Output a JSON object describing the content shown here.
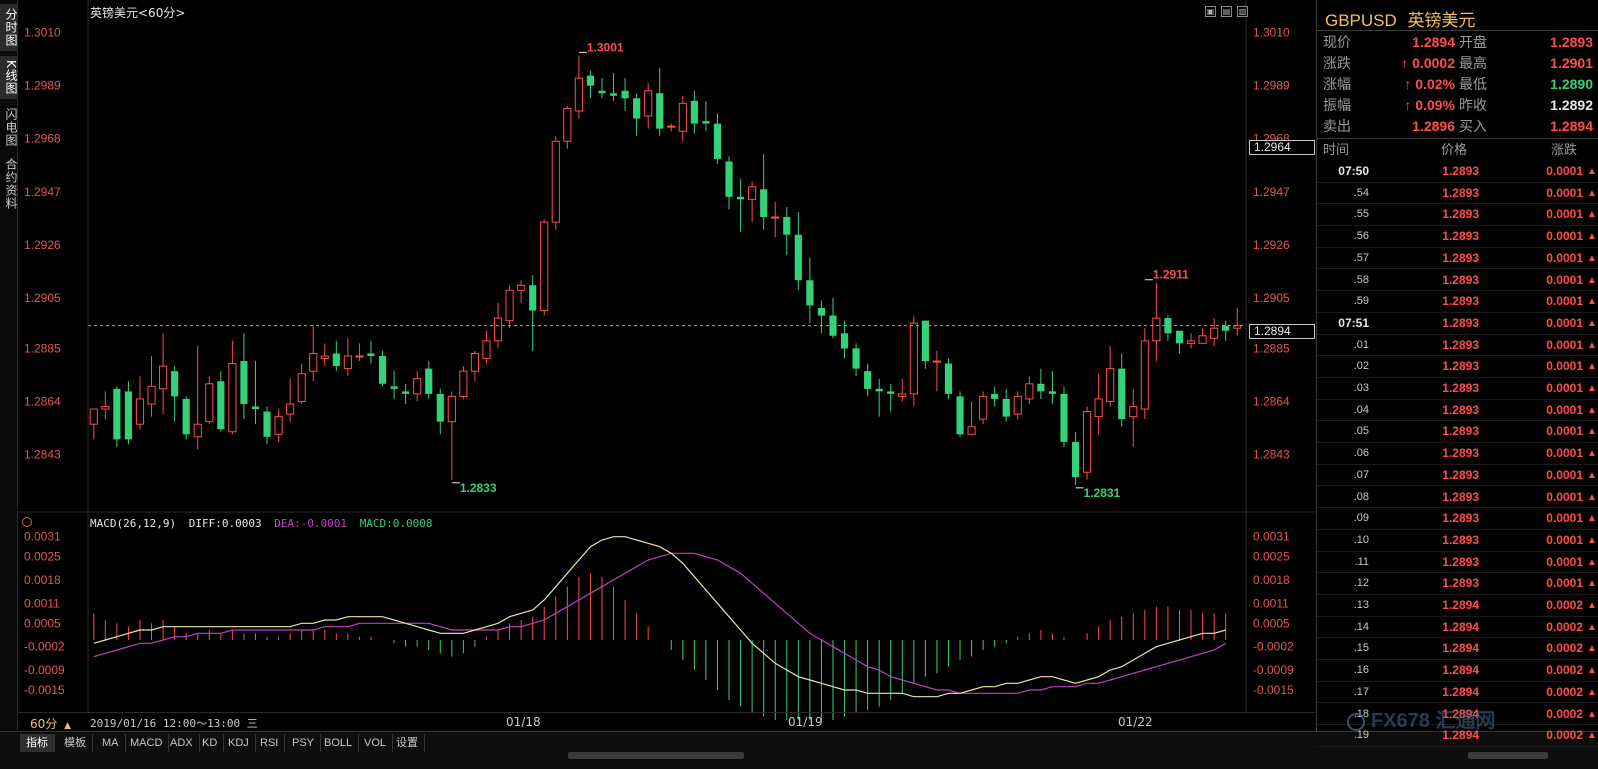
{
  "left_tabs": [
    {
      "label": "分时图",
      "active": true
    },
    {
      "label": "K线图",
      "active": true
    },
    {
      "label": "闪电图",
      "active": false
    },
    {
      "label": "合约资料",
      "active": false
    }
  ],
  "window_buttons": [
    "▣",
    "▤",
    "▥"
  ],
  "chart_title": "英镑美元<60分>",
  "macd_header": {
    "name": "MACD(26,12,9)",
    "diff": "DIFF:0.0003",
    "dea": "DEA:-0.0001",
    "macd": "MACD:0.0008"
  },
  "price_axis_labels": [
    "1.3010",
    "1.2989",
    "1.2968",
    "1.2947",
    "1.2926",
    "1.2905",
    "1.2885",
    "1.2864",
    "1.2843"
  ],
  "macd_axis_labels": [
    "0.0031",
    "0.0025",
    "0.0018",
    "0.0011",
    "0.0005",
    "-0.0002",
    "-0.0009",
    "-0.0015"
  ],
  "price_markers": {
    "current": "1.2894",
    "crosshair": "1.2964"
  },
  "extreme_labels": {
    "high1": "1.3001",
    "low1": "1.2833",
    "low2": "1.2831",
    "high2": "1.2911"
  },
  "date_bar": {
    "period": "60分",
    "cursor_time": "2019/01/16 12:00～13:00 三",
    "dates": [
      "01/18",
      "01/19",
      "01/22"
    ]
  },
  "bottom_tabs": [
    "指标",
    "模板",
    "MA",
    "MACD",
    "ADX",
    "KD",
    "KDJ",
    "RSI",
    "PSY",
    "BOLL",
    "VOL",
    "设置"
  ],
  "quote": {
    "symbol": "GBPUSD",
    "name": "英镑美元",
    "rows": [
      {
        "l1": "现价",
        "v1": "1.2894",
        "c1": "red",
        "l2": "开盘",
        "v2": "1.2893",
        "c2": "red"
      },
      {
        "l1": "涨跌",
        "v1": "↑ 0.0002",
        "c1": "red",
        "l2": "最高",
        "v2": "1.2901",
        "c2": "red"
      },
      {
        "l1": "涨幅",
        "v1": "↑ 0.02%",
        "c1": "red",
        "l2": "最低",
        "v2": "1.2890",
        "c2": "green"
      },
      {
        "l1": "振幅",
        "v1": "↑ 0.09%",
        "c1": "red",
        "l2": "昨收",
        "v2": "1.2892",
        "c2": "white"
      },
      {
        "l1": "卖出",
        "v1": "1.2896",
        "c1": "red",
        "l2": "买入",
        "v2": "1.2894",
        "c2": "red"
      }
    ]
  },
  "ticks_header": {
    "time": "时间",
    "price": "价格",
    "change": "涨跌"
  },
  "ticks": [
    {
      "time": "07:50",
      "price": "1.2893",
      "change": "0.0001"
    },
    {
      "time": ".54",
      "price": "1.2893",
      "change": "0.0001"
    },
    {
      "time": ".55",
      "price": "1.2893",
      "change": "0.0001"
    },
    {
      "time": ".56",
      "price": "1.2893",
      "change": "0.0001"
    },
    {
      "time": ".57",
      "price": "1.2893",
      "change": "0.0001"
    },
    {
      "time": ".58",
      "price": "1.2893",
      "change": "0.0001"
    },
    {
      "time": ".59",
      "price": "1.2893",
      "change": "0.0001"
    },
    {
      "time": "07:51",
      "price": "1.2893",
      "change": "0.0001"
    },
    {
      "time": ".01",
      "price": "1.2893",
      "change": "0.0001"
    },
    {
      "time": ".02",
      "price": "1.2893",
      "change": "0.0001"
    },
    {
      "time": ".03",
      "price": "1.2893",
      "change": "0.0001"
    },
    {
      "time": ".04",
      "price": "1.2893",
      "change": "0.0001"
    },
    {
      "time": ".05",
      "price": "1.2893",
      "change": "0.0001"
    },
    {
      "time": ".06",
      "price": "1.2893",
      "change": "0.0001"
    },
    {
      "time": ".07",
      "price": "1.2893",
      "change": "0.0001"
    },
    {
      "time": ".08",
      "price": "1.2893",
      "change": "0.0001"
    },
    {
      "time": ".09",
      "price": "1.2893",
      "change": "0.0001"
    },
    {
      "time": ".10",
      "price": "1.2893",
      "change": "0.0001"
    },
    {
      "time": ".11",
      "price": "1.2893",
      "change": "0.0001"
    },
    {
      "time": ".12",
      "price": "1.2893",
      "change": "0.0001"
    },
    {
      "time": ".13",
      "price": "1.2894",
      "change": "0.0002"
    },
    {
      "time": ".14",
      "price": "1.2894",
      "change": "0.0002"
    },
    {
      "time": ".15",
      "price": "1.2894",
      "change": "0.0002"
    },
    {
      "time": ".16",
      "price": "1.2894",
      "change": "0.0002"
    },
    {
      "time": ".17",
      "price": "1.2894",
      "change": "0.0002"
    },
    {
      "time": ".18",
      "price": "1.2894",
      "change": "0.0002"
    },
    {
      "time": ".19",
      "price": "1.2894",
      "change": "0.0002"
    }
  ],
  "watermark": "FX678 汇通网",
  "colors": {
    "up": "#ff4d4d",
    "down": "#33d17a",
    "dea": "#c040c0",
    "diff": "#e6e6a0",
    "bg": "#000000"
  },
  "chart_data": {
    "type": "candlestick",
    "interval": "60分",
    "ylim": [
      1.2825,
      1.3015
    ],
    "macd_ylim": [
      -0.0018,
      0.0033
    ],
    "dates": [
      "01/18",
      "01/19",
      "01/22"
    ],
    "candles": [
      [
        1.2855,
        1.2861,
        1.2849,
        1.2861
      ],
      [
        1.2861,
        1.2862,
        1.2868,
        1.2857
      ],
      [
        1.2869,
        1.2849,
        1.287,
        1.2846
      ],
      [
        1.2868,
        1.2849,
        1.2872,
        1.2847
      ],
      [
        1.2855,
        1.2865,
        1.2874,
        1.2853
      ],
      [
        1.2863,
        1.287,
        1.2882,
        1.2858
      ],
      [
        1.2869,
        1.2878,
        1.2891,
        1.2859
      ],
      [
        1.2876,
        1.2866,
        1.2878,
        1.2856
      ],
      [
        1.2865,
        1.2851,
        1.2866,
        1.2849
      ],
      [
        1.285,
        1.2855,
        1.2886,
        1.2845
      ],
      [
        1.2856,
        1.2871,
        1.2874,
        1.2855
      ],
      [
        1.2872,
        1.2853,
        1.2876,
        1.2852
      ],
      [
        1.2852,
        1.2879,
        1.2888,
        1.2851
      ],
      [
        1.288,
        1.2863,
        1.2891,
        1.2857
      ],
      [
        1.2862,
        1.2861,
        1.288,
        1.2855
      ],
      [
        1.286,
        1.285,
        1.2862,
        1.2847
      ],
      [
        1.2851,
        1.2858,
        1.2861,
        1.2848
      ],
      [
        1.2859,
        1.2863,
        1.2873,
        1.2856
      ],
      [
        1.2864,
        1.2875,
        1.2879,
        1.2863
      ],
      [
        1.2876,
        1.2883,
        1.2894,
        1.2872
      ],
      [
        1.2881,
        1.2882,
        1.2887,
        1.2878
      ],
      [
        1.2883,
        1.2878,
        1.2888,
        1.2876
      ],
      [
        1.2877,
        1.2882,
        1.2889,
        1.2874
      ],
      [
        1.2882,
        1.2882,
        1.2887,
        1.288
      ],
      [
        1.2883,
        1.2882,
        1.2888,
        1.2879
      ],
      [
        1.2882,
        1.2871,
        1.2884,
        1.287
      ],
      [
        1.287,
        1.2869,
        1.2876,
        1.2865
      ],
      [
        1.2868,
        1.2867,
        1.2871,
        1.2863
      ],
      [
        1.2867,
        1.2873,
        1.2876,
        1.2864
      ],
      [
        1.2877,
        1.2867,
        1.288,
        1.2865
      ],
      [
        1.2867,
        1.2856,
        1.2869,
        1.2851
      ],
      [
        1.2856,
        1.2866,
        1.2868,
        1.2833
      ],
      [
        1.2866,
        1.2876,
        1.2878,
        1.2865
      ],
      [
        1.2876,
        1.2883,
        1.2884,
        1.2872
      ],
      [
        1.2881,
        1.2888,
        1.2892,
        1.2879
      ],
      [
        1.2888,
        1.2897,
        1.2903,
        1.2885
      ],
      [
        1.2896,
        1.2908,
        1.291,
        1.2893
      ],
      [
        1.2908,
        1.291,
        1.2912,
        1.2903
      ],
      [
        1.291,
        1.29,
        1.2914,
        1.2884
      ],
      [
        1.29,
        1.2935,
        1.2936,
        1.2898
      ],
      [
        1.2935,
        1.2967,
        1.2969,
        1.2932
      ],
      [
        1.2967,
        1.298,
        1.2981,
        1.2964
      ],
      [
        1.2979,
        1.2992,
        1.3001,
        1.2976
      ],
      [
        1.2993,
        1.2989,
        1.2995,
        1.2984
      ],
      [
        1.2987,
        1.2986,
        1.2992,
        1.2984
      ],
      [
        1.2986,
        1.2985,
        1.2994,
        1.2983
      ],
      [
        1.2987,
        1.2984,
        1.2992,
        1.2979
      ],
      [
        1.2984,
        1.2976,
        1.2986,
        1.2969
      ],
      [
        1.2977,
        1.2987,
        1.299,
        1.2972
      ],
      [
        1.2986,
        1.2972,
        1.2996,
        1.2969
      ],
      [
        1.2973,
        1.2973,
        1.2974,
        1.2971
      ],
      [
        1.2971,
        1.2982,
        1.2985,
        1.2967
      ],
      [
        1.2983,
        1.2974,
        1.2987,
        1.297
      ],
      [
        1.2975,
        1.2974,
        1.2983,
        1.2971
      ],
      [
        1.2974,
        1.296,
        1.2978,
        1.2958
      ],
      [
        1.2959,
        1.2945,
        1.2961,
        1.294
      ],
      [
        1.2945,
        1.2944,
        1.2952,
        1.2931
      ],
      [
        1.2944,
        1.2949,
        1.2951,
        1.2935
      ],
      [
        1.2948,
        1.2937,
        1.2962,
        1.2932
      ],
      [
        1.2937,
        1.2937,
        1.2943,
        1.2929
      ],
      [
        1.2937,
        1.293,
        1.2941,
        1.2922
      ],
      [
        1.293,
        1.2912,
        1.2939,
        1.2908
      ],
      [
        1.2912,
        1.2902,
        1.2921,
        1.2895
      ],
      [
        1.2901,
        1.2898,
        1.2904,
        1.2891
      ],
      [
        1.2898,
        1.289,
        1.2905,
        1.2889
      ],
      [
        1.2891,
        1.2885,
        1.2896,
        1.2881
      ],
      [
        1.2885,
        1.2877,
        1.2887,
        1.2874
      ],
      [
        1.2876,
        1.2869,
        1.2879,
        1.2866
      ],
      [
        1.2869,
        1.2868,
        1.2873,
        1.2858
      ],
      [
        1.2868,
        1.2867,
        1.2871,
        1.286
      ],
      [
        1.2866,
        1.2867,
        1.2873,
        1.2864
      ],
      [
        1.2867,
        1.2895,
        1.2898,
        1.2862
      ],
      [
        1.2896,
        1.288,
        1.2896,
        1.2877
      ],
      [
        1.288,
        1.288,
        1.2884,
        1.2868
      ],
      [
        1.2879,
        1.2867,
        1.2881,
        1.2865
      ],
      [
        1.2866,
        1.2851,
        1.2868,
        1.285
      ],
      [
        1.2851,
        1.2854,
        1.2864,
        1.2851
      ],
      [
        1.2857,
        1.2866,
        1.2868,
        1.2855
      ],
      [
        1.2867,
        1.2865,
        1.287,
        1.2862
      ],
      [
        1.2865,
        1.2858,
        1.2869,
        1.2856
      ],
      [
        1.2859,
        1.2866,
        1.2868,
        1.2857
      ],
      [
        1.2865,
        1.2871,
        1.2874,
        1.2863
      ],
      [
        1.2871,
        1.2868,
        1.2877,
        1.2865
      ],
      [
        1.2868,
        1.2867,
        1.2876,
        1.2863
      ],
      [
        1.2867,
        1.2848,
        1.287,
        1.2846
      ],
      [
        1.2848,
        1.2834,
        1.2852,
        1.2831
      ],
      [
        1.2836,
        1.286,
        1.2862,
        1.2833
      ],
      [
        1.2858,
        1.2865,
        1.2875,
        1.2851
      ],
      [
        1.2864,
        1.2877,
        1.2886,
        1.2862
      ],
      [
        1.2877,
        1.2857,
        1.2883,
        1.2854
      ],
      [
        1.2858,
        1.2862,
        1.2869,
        1.2846
      ],
      [
        1.2861,
        1.2888,
        1.2893,
        1.2857
      ],
      [
        1.2888,
        1.2897,
        1.2911,
        1.288
      ],
      [
        1.2897,
        1.2891,
        1.2898,
        1.2888
      ],
      [
        1.2892,
        1.2887,
        1.2891,
        1.2883
      ],
      [
        1.2887,
        1.2888,
        1.2891,
        1.2885
      ],
      [
        1.2887,
        1.289,
        1.2893,
        1.2887
      ],
      [
        1.2889,
        1.2893,
        1.2897,
        1.2886
      ],
      [
        1.2894,
        1.2892,
        1.2896,
        1.2888
      ],
      [
        1.2893,
        1.2894,
        1.2901,
        1.289
      ]
    ],
    "macd_hist": [
      0.0008,
      0.0006,
      0.0005,
      0.0004,
      0.0006,
      0.0005,
      0.0006,
      0.0004,
      0.0002,
      0.0002,
      0.0003,
      0.0002,
      0.0003,
      0.0002,
      0.0002,
      0.0001,
      0.0001,
      0.0002,
      0.0003,
      0.0003,
      0.0003,
      0.0002,
      0.0002,
      0.0001,
      0.0001,
      0.0,
      -0.0001,
      -0.0002,
      -0.0002,
      -0.0003,
      -0.0004,
      -0.0005,
      -0.0004,
      -0.0002,
      0.0001,
      0.0003,
      0.0005,
      0.0006,
      0.0007,
      0.001,
      0.0013,
      0.0016,
      0.0019,
      0.002,
      0.0019,
      0.0016,
      0.0012,
      0.0008,
      0.0004,
      0.0,
      -0.0003,
      -0.0006,
      -0.0009,
      -0.0012,
      -0.0015,
      -0.0018,
      -0.002,
      -0.0022,
      -0.0023,
      -0.0024,
      -0.0024,
      -0.0024,
      -0.0024,
      -0.0024,
      -0.0024,
      -0.0023,
      -0.0022,
      -0.0021,
      -0.002,
      -0.0018,
      -0.0016,
      -0.0013,
      -0.0011,
      -0.001,
      -0.0008,
      -0.0006,
      -0.0005,
      -0.0003,
      -0.0002,
      -0.0001,
      0.0001,
      0.0002,
      0.0003,
      0.0002,
      0.0001,
      0.0,
      0.0002,
      0.0004,
      0.0006,
      0.0007,
      0.0008,
      0.0009,
      0.001,
      0.001,
      0.0009,
      0.0009,
      0.0008,
      0.0008,
      0.0008
    ],
    "diff": [
      -0.0001,
      0.0,
      0.0001,
      0.0002,
      0.0003,
      0.0003,
      0.0004,
      0.0004,
      0.0004,
      0.0004,
      0.0004,
      0.0004,
      0.0004,
      0.0004,
      0.0004,
      0.0004,
      0.0004,
      0.0004,
      0.0005,
      0.0005,
      0.0006,
      0.0006,
      0.0007,
      0.0007,
      0.0007,
      0.0007,
      0.0006,
      0.0005,
      0.0004,
      0.0003,
      0.0002,
      0.0002,
      0.0002,
      0.0003,
      0.0004,
      0.0005,
      0.0007,
      0.0008,
      0.0009,
      0.0012,
      0.0016,
      0.002,
      0.0024,
      0.0028,
      0.003,
      0.0031,
      0.0031,
      0.003,
      0.0029,
      0.0028,
      0.0026,
      0.0023,
      0.0019,
      0.0015,
      0.0011,
      0.0007,
      0.0003,
      -0.0001,
      -0.0004,
      -0.0007,
      -0.0009,
      -0.0011,
      -0.0012,
      -0.0013,
      -0.0014,
      -0.0015,
      -0.0015,
      -0.0016,
      -0.0016,
      -0.0016,
      -0.0016,
      -0.0017,
      -0.0017,
      -0.0017,
      -0.0016,
      -0.0016,
      -0.0015,
      -0.0014,
      -0.0014,
      -0.0013,
      -0.0013,
      -0.0012,
      -0.0011,
      -0.0011,
      -0.0012,
      -0.0013,
      -0.0012,
      -0.0011,
      -0.0009,
      -0.0008,
      -0.0006,
      -0.0004,
      -0.0002,
      -0.0001,
      0.0,
      0.0001,
      0.0002,
      0.0002,
      0.0003
    ],
    "dea": [
      -0.0005,
      -0.0004,
      -0.0003,
      -0.0002,
      -0.0001,
      -0.0001,
      0.0,
      0.0001,
      0.0001,
      0.0002,
      0.0002,
      0.0002,
      0.0003,
      0.0003,
      0.0003,
      0.0003,
      0.0003,
      0.0003,
      0.0003,
      0.0003,
      0.0004,
      0.0004,
      0.0004,
      0.0005,
      0.0005,
      0.0005,
      0.0005,
      0.0005,
      0.0005,
      0.0005,
      0.0004,
      0.0003,
      0.0003,
      0.0003,
      0.0003,
      0.0003,
      0.0004,
      0.0004,
      0.0005,
      0.0006,
      0.0008,
      0.001,
      0.0012,
      0.0014,
      0.0016,
      0.0018,
      0.002,
      0.0022,
      0.0024,
      0.0025,
      0.0026,
      0.0026,
      0.0026,
      0.0025,
      0.0024,
      0.0022,
      0.002,
      0.0017,
      0.0014,
      0.0011,
      0.0008,
      0.0005,
      0.0002,
      0.0,
      -0.0002,
      -0.0004,
      -0.0006,
      -0.0008,
      -0.0009,
      -0.0011,
      -0.0012,
      -0.0013,
      -0.0014,
      -0.0015,
      -0.0015,
      -0.0016,
      -0.0016,
      -0.0016,
      -0.0016,
      -0.0016,
      -0.0016,
      -0.0015,
      -0.0015,
      -0.0014,
      -0.0014,
      -0.0014,
      -0.0013,
      -0.0013,
      -0.0012,
      -0.0011,
      -0.001,
      -0.0009,
      -0.0008,
      -0.0007,
      -0.0006,
      -0.0005,
      -0.0004,
      -0.0003,
      -0.0001
    ]
  }
}
